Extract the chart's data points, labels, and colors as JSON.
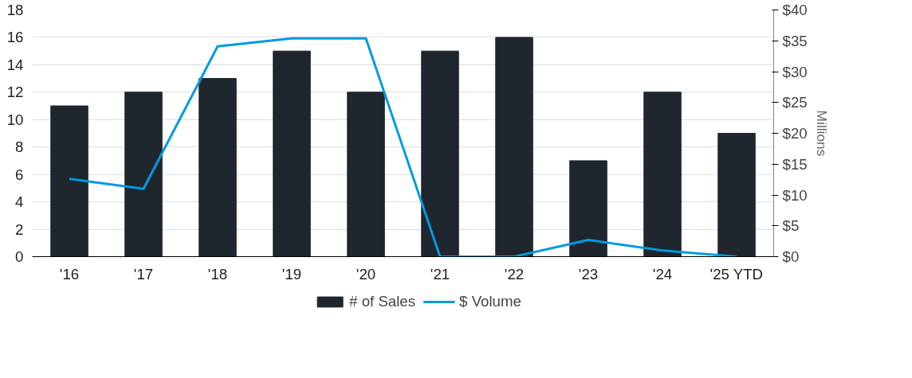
{
  "chart_data": {
    "type": "bar",
    "categories": [
      "'16",
      "'17",
      "'18",
      "'19",
      "'20",
      "'21",
      "'22",
      "'23",
      "'24",
      "'25 YTD"
    ],
    "series": [
      {
        "name": "# of Sales",
        "color": "#1f262e",
        "values": [
          11,
          12,
          13,
          15,
          12,
          15,
          16,
          7,
          12,
          9
        ]
      },
      {
        "name": "$ Volume",
        "type": "line",
        "axis": "y2",
        "color": "#009bde",
        "values": [
          12.6,
          11.0,
          34.1,
          35.4,
          35.4,
          0,
          0,
          2.7,
          1.0,
          0
        ]
      }
    ],
    "ylim": [
      0,
      18
    ],
    "yticks": [
      0,
      2,
      4,
      6,
      8,
      10,
      12,
      14,
      16,
      18
    ],
    "y2lim": [
      0,
      40
    ],
    "y2ticks": [
      {
        "value": 0,
        "label": "$0"
      },
      {
        "value": 5,
        "label": "$5"
      },
      {
        "value": 10,
        "label": "$10"
      },
      {
        "value": 15,
        "label": "$15"
      },
      {
        "value": 20,
        "label": "$20"
      },
      {
        "value": 25,
        "label": "$25"
      },
      {
        "value": 30,
        "label": "$30"
      },
      {
        "value": 35,
        "label": "$35"
      },
      {
        "value": 40,
        "label": "$40"
      }
    ],
    "y2label": "Millions",
    "grid": "y",
    "legend": "bottom",
    "line_style": "solid"
  }
}
